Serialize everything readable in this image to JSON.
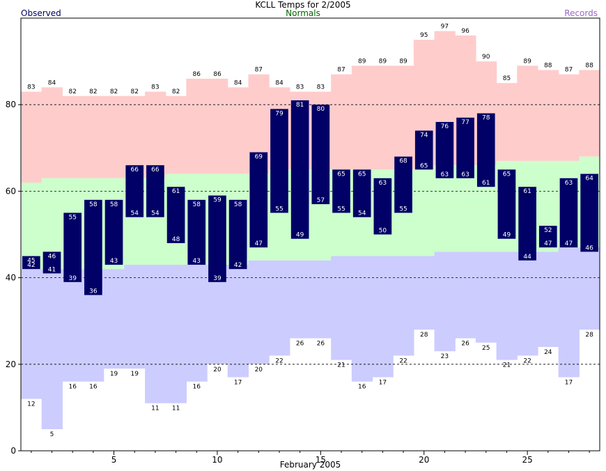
{
  "chart_data": {
    "type": "bar",
    "title": "KCLL Temps for 2/2005",
    "subtitle": "Normals",
    "xlabel": "February 2005",
    "ylabel": "",
    "legend": {
      "left": "Observed",
      "right": "Records"
    },
    "days": [
      1,
      2,
      3,
      4,
      5,
      6,
      7,
      8,
      9,
      10,
      11,
      12,
      13,
      14,
      15,
      16,
      17,
      18,
      19,
      20,
      21,
      22,
      23,
      24,
      25,
      26,
      27,
      28
    ],
    "xticks": [
      5,
      10,
      15,
      20,
      25
    ],
    "yticks": [
      0,
      20,
      40,
      60,
      80
    ],
    "ylim": [
      0,
      100
    ],
    "grid": true,
    "series": [
      {
        "name": "Observed",
        "high": [
          45,
          46,
          55,
          58,
          58,
          66,
          66,
          61,
          58,
          59,
          58,
          69,
          79,
          81,
          80,
          65,
          65,
          63,
          68,
          74,
          76,
          77,
          78,
          65,
          61,
          52,
          63,
          64
        ],
        "low": [
          42,
          41,
          39,
          36,
          43,
          54,
          54,
          48,
          43,
          39,
          42,
          47,
          55,
          49,
          57,
          55,
          54,
          50,
          55,
          65,
          63,
          63,
          61,
          49,
          44,
          47,
          47,
          46
        ]
      },
      {
        "name": "Normals",
        "high": [
          62,
          63,
          63,
          63,
          63,
          63,
          63,
          64,
          64,
          64,
          64,
          64,
          65,
          65,
          65,
          65,
          65,
          65,
          65,
          65,
          66,
          66,
          66,
          67,
          67,
          67,
          67,
          68
        ],
        "low": [
          42,
          42,
          42,
          42,
          42,
          43,
          43,
          43,
          43,
          43,
          43,
          44,
          44,
          44,
          44,
          45,
          45,
          45,
          45,
          45,
          46,
          46,
          46,
          46,
          46,
          46,
          47,
          47
        ]
      },
      {
        "name": "Records",
        "high": [
          83,
          84,
          82,
          82,
          82,
          82,
          83,
          82,
          86,
          86,
          84,
          87,
          84,
          83,
          83,
          87,
          89,
          89,
          89,
          95,
          97,
          96,
          90,
          85,
          89,
          88,
          87,
          88
        ],
        "low": [
          12,
          5,
          16,
          16,
          19,
          19,
          11,
          11,
          16,
          20,
          17,
          20,
          22,
          26,
          26,
          21,
          16,
          17,
          22,
          28,
          23,
          26,
          25,
          21,
          22,
          24,
          17,
          28
        ]
      }
    ],
    "colors": {
      "observed": "#000066",
      "normals": "#ccffcc",
      "record_high": "#ffcccc",
      "record_low": "#ccccff",
      "grid": "#000000"
    }
  }
}
